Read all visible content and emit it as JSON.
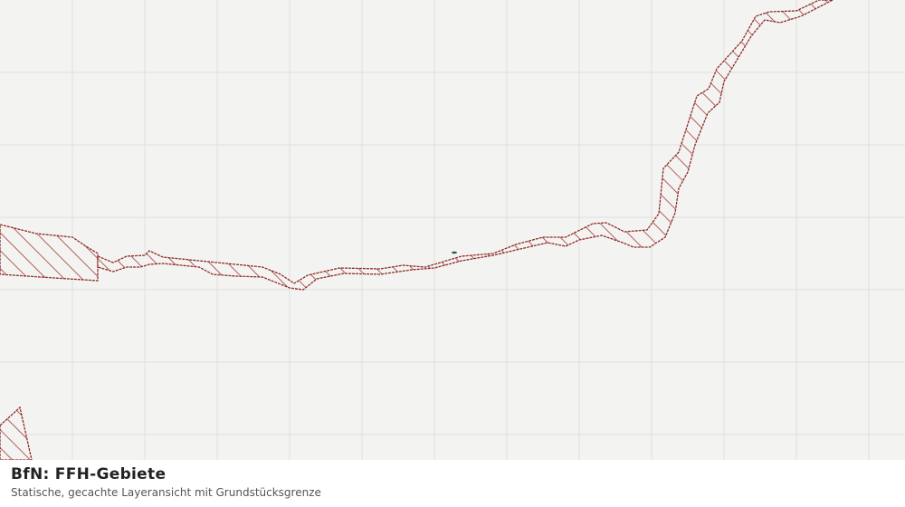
{
  "legend": {
    "title": "BfN: FFH-Gebiete",
    "subtitle": "Statische, gecachte Layeransicht mit Grundstücksgrenze"
  }
}
